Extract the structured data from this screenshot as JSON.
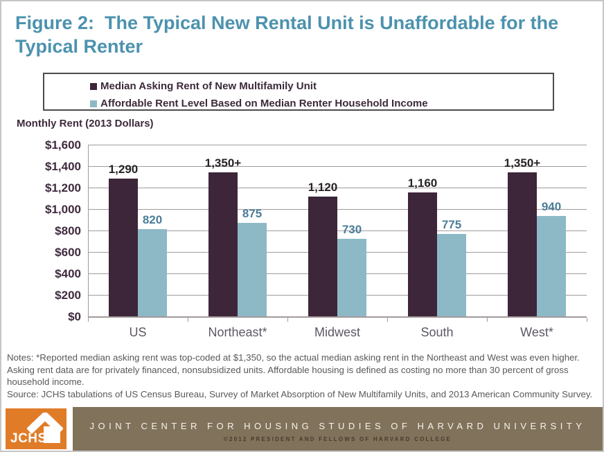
{
  "header": {
    "line1": "Figure 2:  The Typical New Rental Unit is Unaffordable for the",
    "line2": "Typical Renter"
  },
  "theme": {
    "title_color": "#4c92ae",
    "logo_orange": "#e07c28",
    "footer_brown": "#81725c"
  },
  "chart_data": {
    "type": "bar",
    "title": "Figure 2: The Typical New Rental Unit is Unaffordable for the Typical Renter",
    "ylabel": "Monthly Rent (2013 Dollars)",
    "xlabel": "",
    "categories": [
      "US",
      "Northeast*",
      "Midwest",
      "South",
      "West*"
    ],
    "series": [
      {
        "name": "Median Asking Rent of New Multifamily Unit",
        "values": [
          1290,
          1350,
          1120,
          1160,
          1350
        ],
        "labels": [
          "1,290",
          "1,350+",
          "1,120",
          "1,160",
          "1,350+"
        ],
        "color": "#3d2639",
        "label_color": "#262226"
      },
      {
        "name": "Affordable Rent Level Based on Median Renter Household Income",
        "values": [
          820,
          875,
          730,
          775,
          940
        ],
        "labels": [
          "820",
          "875",
          "730",
          "775",
          "940"
        ],
        "color": "#8db9c7",
        "label_color": "#4a7d99"
      }
    ],
    "ylim": [
      0,
      1600
    ],
    "ytick_step": 200,
    "ytick_labels": [
      "$0",
      "$200",
      "$400",
      "$600",
      "$800",
      "$1,000",
      "$1,200",
      "$1,400",
      "$1,600"
    ],
    "grid": true,
    "legend_position": "top"
  },
  "notes": "Notes: *Reported median asking rent was top-coded at $1,350, so the actual median asking rent in the Northeast and West was even higher. Asking rent data are for privately financed, nonsubsidized units. Affordable housing is defined as costing no more than 30 percent of gross household income.",
  "source": "Source: JCHS tabulations of US Census Bureau, Survey of Market Absorption of New Multifamily Units, and 2013 American Community Survey.",
  "footer": {
    "logo_text": "JCHS",
    "org": "JOINT CENTER FOR HOUSING STUDIES OF HARVARD UNIVERSITY",
    "copyright": "©2012 PRESIDENT AND FELLOWS OF HARVARD COLLEGE"
  }
}
